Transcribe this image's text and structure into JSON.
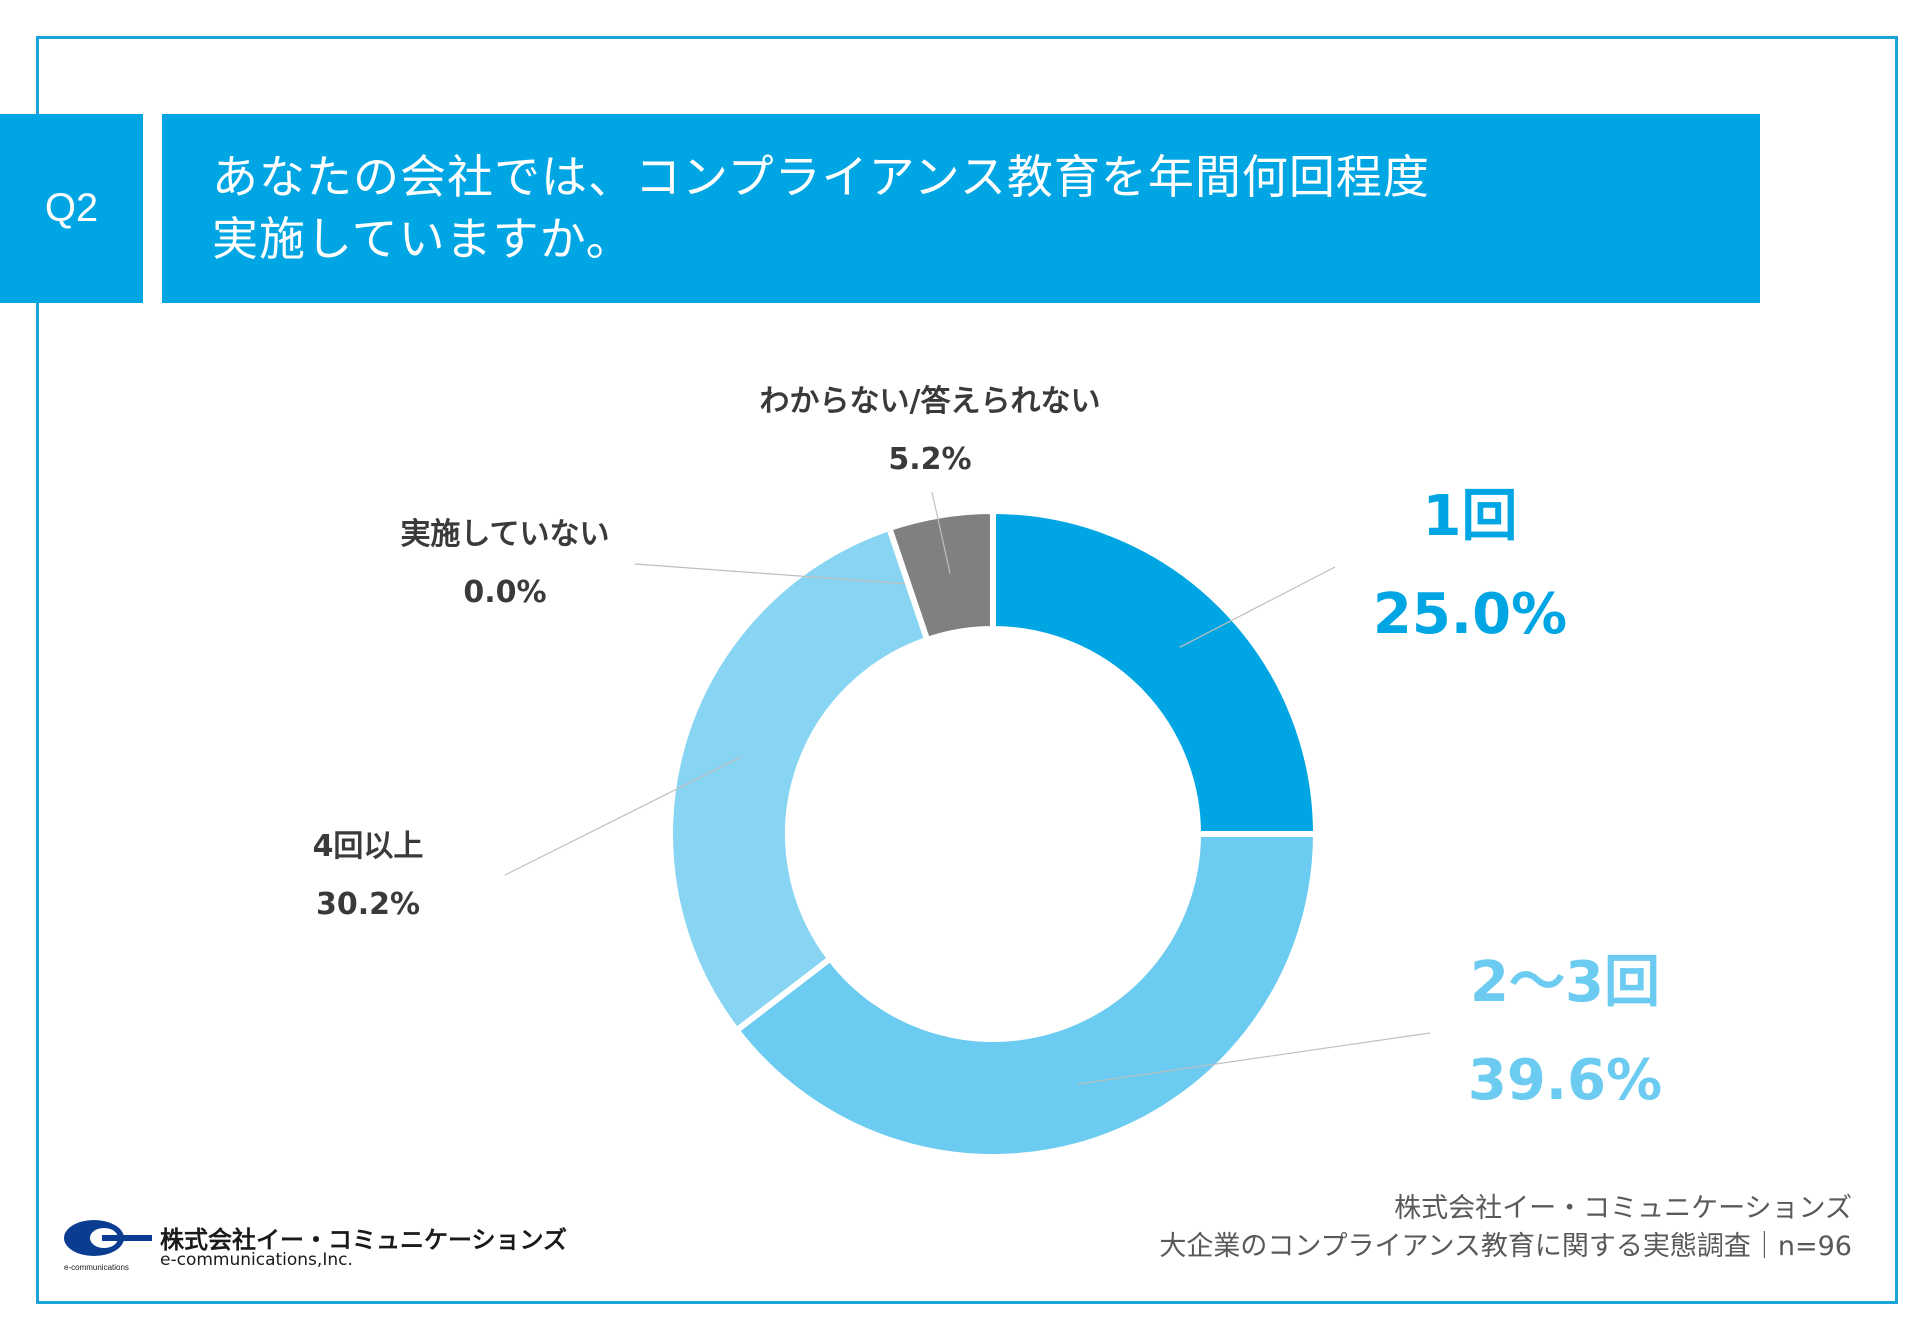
{
  "question": {
    "badge": "Q2",
    "line1": "あなたの会社では、コンプライアンス教育を年間何回程度",
    "line2": "実施していますか。"
  },
  "colors": {
    "accent": "#00a6e4",
    "slice_1": "#00a6e4",
    "slice_2": "#6ccbf0",
    "slice_3": "#87d5f3",
    "slice_4": "#a6a6a6",
    "slice_5": "#808080"
  },
  "chart_data": {
    "type": "pie",
    "variant": "donut",
    "categories": [
      "1回",
      "2〜3回",
      "4回以上",
      "実施していない",
      "わからない/答えられない"
    ],
    "values": [
      25.0,
      39.6,
      30.2,
      0.0,
      5.2
    ],
    "labels": [
      "25.0%",
      "39.6%",
      "30.2%",
      "0.0%",
      "5.2%"
    ],
    "unit": "%",
    "legend": "none (data labels)"
  },
  "footer": {
    "logo_jp": "株式会社イー・コミュニケーションズ",
    "logo_en": "e-communications,Inc.",
    "logo_mark_text": "e-communications",
    "source_line1": "株式会社イー・コミュニケーションズ",
    "source_line2": "大企業のコンプライアンス教育に関する実態調査｜n=96"
  }
}
